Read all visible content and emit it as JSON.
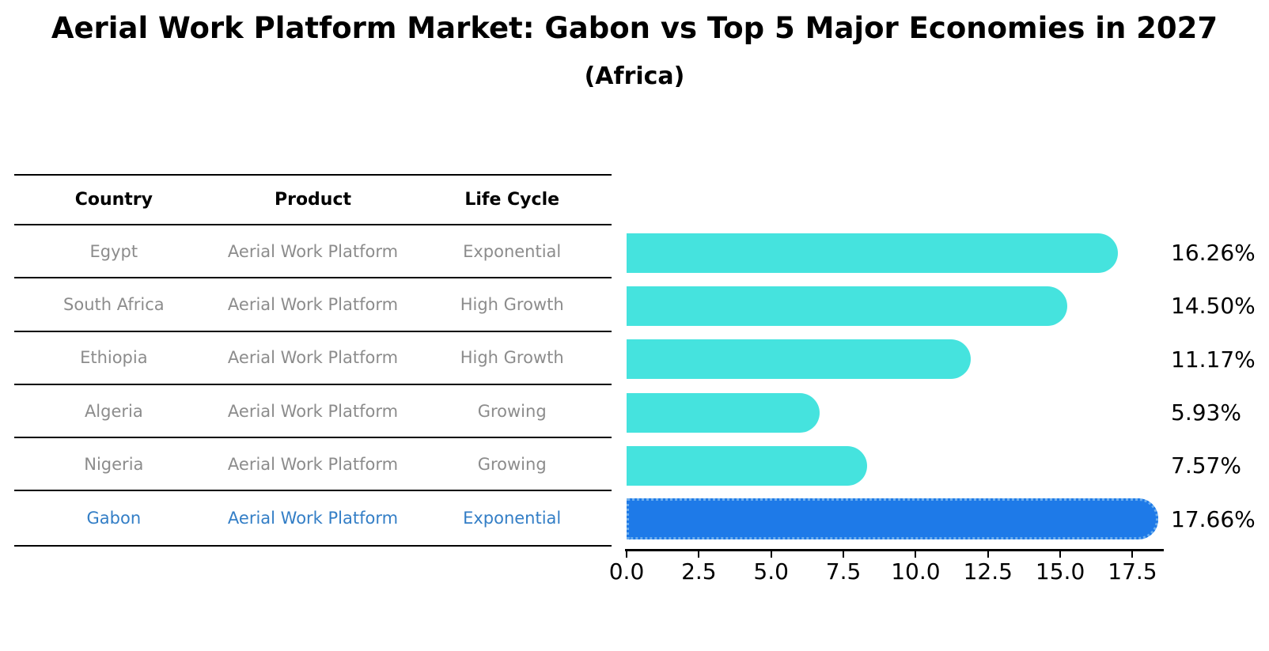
{
  "title": "Aerial Work Platform Market: Gabon vs Top 5 Major Economies in 2027",
  "subtitle": "(Africa)",
  "table": {
    "headers": [
      "Country",
      "Product",
      "Life Cycle"
    ],
    "rows": [
      {
        "country": "Egypt",
        "product": "Aerial Work Platform",
        "life_cycle": "Exponential",
        "highlight": false
      },
      {
        "country": "South Africa",
        "product": "Aerial Work Platform",
        "life_cycle": "High Growth",
        "highlight": false
      },
      {
        "country": "Ethiopia",
        "product": "Aerial Work Platform",
        "life_cycle": "High Growth",
        "highlight": false
      },
      {
        "country": "Algeria",
        "product": "Aerial Work Platform",
        "life_cycle": "Growing",
        "highlight": false
      },
      {
        "country": "Nigeria",
        "product": "Aerial Work Platform",
        "life_cycle": "Growing",
        "highlight": false
      },
      {
        "country": "Gabon",
        "product": "Aerial Work Platform",
        "life_cycle": "Exponential",
        "highlight": true
      }
    ]
  },
  "chart_data": {
    "type": "bar",
    "orientation": "horizontal",
    "title": "Aerial Work Platform Market: Gabon vs Top 5 Major Economies in 2027 (Africa)",
    "categories": [
      "Egypt",
      "South Africa",
      "Ethiopia",
      "Algeria",
      "Nigeria",
      "Gabon"
    ],
    "values": [
      16.26,
      14.5,
      11.17,
      5.93,
      7.57,
      17.66
    ],
    "value_labels": [
      "16.26%",
      "14.50%",
      "11.17%",
      "5.93%",
      "7.57%",
      "17.66%"
    ],
    "unit": "percent CAGR",
    "x_ticks": [
      "0.0",
      "2.5",
      "5.0",
      "7.5",
      "10.0",
      "12.5",
      "15.0",
      "17.5"
    ],
    "xlim": [
      0,
      18.5
    ],
    "highlight_index": 5,
    "grid": false,
    "legend": false
  },
  "colors": {
    "bar": "#45e3de",
    "highlight_bar": "#1e7ae8",
    "highlight_bar_edge": "#6caeee",
    "row_text": "#8c8c8c",
    "highlight_text": "#337ec6",
    "header_text": "#000000",
    "axis": "#000000"
  }
}
